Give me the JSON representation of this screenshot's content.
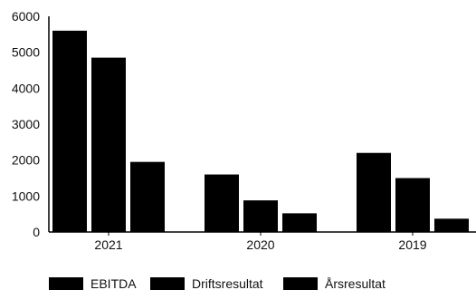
{
  "chart_data": {
    "type": "bar",
    "categories": [
      "2021",
      "2020",
      "2019"
    ],
    "series": [
      {
        "name": "EBITDA",
        "values": [
          5600,
          1600,
          2200
        ],
        "color": "#000000"
      },
      {
        "name": "Driftsresultat",
        "values": [
          4850,
          880,
          1500
        ],
        "color": "#000000"
      },
      {
        "name": "Årsresultat",
        "values": [
          1950,
          520,
          370
        ],
        "color": "#000000"
      }
    ],
    "yticks": [
      0,
      1000,
      2000,
      3000,
      4000,
      5000,
      6000
    ],
    "ylim": [
      0,
      6000
    ],
    "grid": false,
    "legend_position": "bottom-left",
    "title": "",
    "xlabel": "",
    "ylabel": ""
  }
}
